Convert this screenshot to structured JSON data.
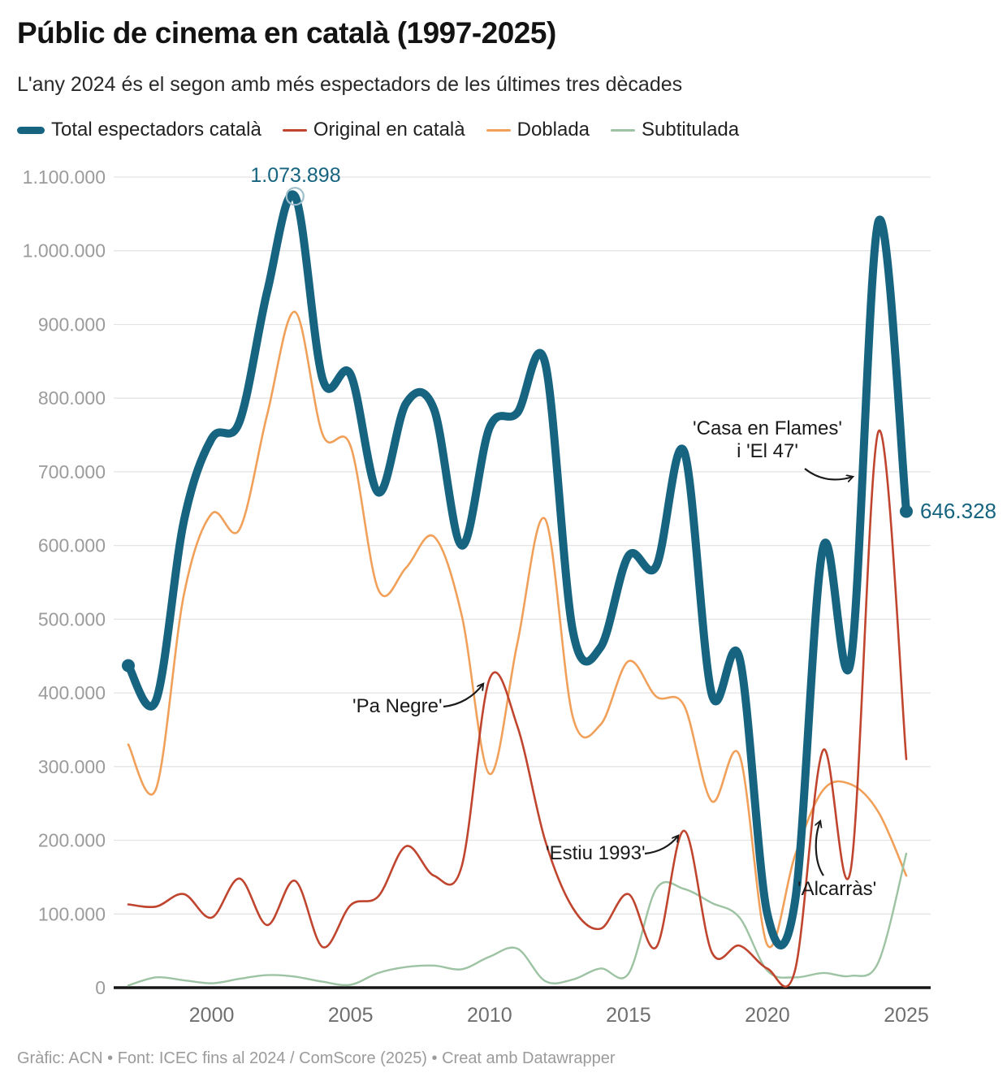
{
  "header": {
    "title": "Públic de cinema en català (1997-2025)",
    "subtitle": "L'any 2024 és el segon amb més espectadors de les últimes tres dècades"
  },
  "palette": {
    "total": "#176481",
    "original": "#C0452E",
    "doblada": "#F1A05A",
    "subtitulada": "#9DC3A3",
    "gridline": "#E4E4E4",
    "axis": "#161616",
    "y_label": "#9B9B9B",
    "x_label": "#6F6F6F",
    "annotation": "#1A1A1A"
  },
  "chart_data": {
    "type": "line",
    "x": [
      1997,
      1998,
      1999,
      2000,
      2001,
      2002,
      2003,
      2004,
      2005,
      2006,
      2007,
      2008,
      2009,
      2010,
      2011,
      2012,
      2013,
      2014,
      2015,
      2016,
      2017,
      2018,
      2019,
      2020,
      2021,
      2022,
      2023,
      2024,
      2025
    ],
    "x_ticks": [
      "2000",
      "2005",
      "2010",
      "2015",
      "2020",
      "2025"
    ],
    "y_ticks": [
      {
        "value": 0,
        "label": "0"
      },
      {
        "value": 100000,
        "label": "100.000"
      },
      {
        "value": 200000,
        "label": "200.000"
      },
      {
        "value": 300000,
        "label": "300.000"
      },
      {
        "value": 400000,
        "label": "400.000"
      },
      {
        "value": 500000,
        "label": "500.000"
      },
      {
        "value": 600000,
        "label": "600.000"
      },
      {
        "value": 700000,
        "label": "700.000"
      },
      {
        "value": 800000,
        "label": "800.000"
      },
      {
        "value": 900000,
        "label": "900.000"
      },
      {
        "value": 1000000,
        "label": "1.000.000"
      },
      {
        "value": 1100000,
        "label": "1.100.000"
      }
    ],
    "xlim": [
      1997,
      2025
    ],
    "ylim": [
      0,
      1100000
    ],
    "grid": true,
    "legend_position": "top",
    "series": [
      {
        "id": "total",
        "name": "Total espectadors català",
        "color": "#176481",
        "width": 10,
        "values": [
          437000,
          390000,
          633000,
          745000,
          768000,
          945000,
          1073898,
          825000,
          832000,
          672000,
          793000,
          785000,
          600000,
          760000,
          780000,
          848000,
          484000,
          462000,
          586000,
          572000,
          728000,
          398000,
          447000,
          100000,
          118000,
          597000,
          443000,
          1040000,
          646328
        ],
        "markers": [
          {
            "year": 1997,
            "type": "dot"
          },
          {
            "year": 2025,
            "type": "dot"
          },
          {
            "year": 2003,
            "type": "open"
          }
        ]
      },
      {
        "id": "original",
        "name": "Original en català",
        "color": "#C0452E",
        "width": 2.6,
        "values": [
          113000,
          110000,
          127000,
          95000,
          148000,
          85000,
          145000,
          55000,
          112000,
          124000,
          192000,
          152000,
          165000,
          419000,
          355000,
          200000,
          108000,
          80000,
          127000,
          55000,
          213000,
          48000,
          57000,
          26000,
          24000,
          322000,
          160000,
          755000,
          310000
        ]
      },
      {
        "id": "doblada",
        "name": "Doblada",
        "color": "#F1A05A",
        "width": 2.6,
        "values": [
          330000,
          270000,
          533000,
          643000,
          622000,
          778000,
          917000,
          750000,
          735000,
          540000,
          570000,
          612000,
          505000,
          290000,
          467000,
          636000,
          367000,
          357000,
          443000,
          395000,
          383000,
          253000,
          315000,
          58000,
          180000,
          268000,
          276000,
          238000,
          152000
        ]
      },
      {
        "id": "subtitulada",
        "name": "Subtitulada",
        "color": "#9DC3A3",
        "width": 2.4,
        "values": [
          3000,
          14000,
          10000,
          6000,
          12000,
          17000,
          15000,
          8000,
          4000,
          20000,
          28000,
          30000,
          25000,
          42000,
          53000,
          9000,
          11000,
          26000,
          19000,
          134000,
          134000,
          115000,
          95000,
          23000,
          14000,
          20000,
          16000,
          35000,
          182000
        ]
      }
    ],
    "point_labels": [
      {
        "series": "Total espectadors català",
        "year": 2003,
        "value": 1073898,
        "label": "1.073.898"
      },
      {
        "series": "Total espectadors català",
        "year": 2025,
        "value": 646328,
        "label": "646.328"
      }
    ]
  },
  "annotations": {
    "peak_label": "1.073.898",
    "end_label": "646.328",
    "pa_negre": "'Pa Negre'",
    "estiu_1993": "'Estiu 1993'",
    "casa_line1": "'Casa en Flames'",
    "casa_line2": "i 'El 47'",
    "alcarras": "'Alcarràs'"
  },
  "footer": {
    "text": "Gràfic: ACN • Font: ICEC fins al 2024 / ComScore (2025) • Creat amb Datawrapper"
  }
}
